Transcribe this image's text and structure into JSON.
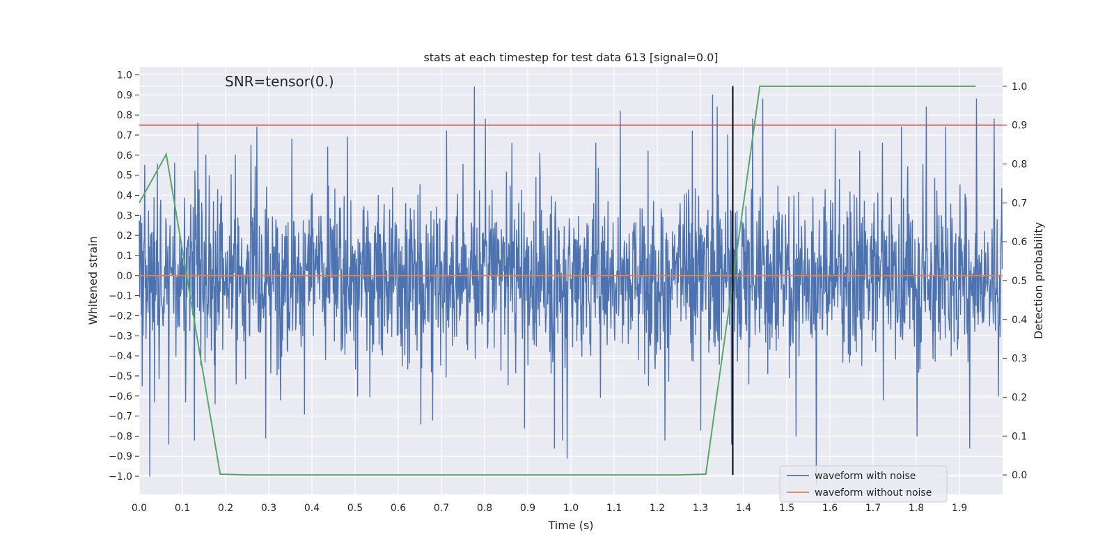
{
  "chart_data": {
    "type": "line",
    "title": "stats at each timestep for test data 613 [signal=0.0]",
    "xlabel": "Time (s)",
    "ylabel": "Whitened strain",
    "y2label": "Detection probability",
    "xlim": [
      0.0,
      2.0
    ],
    "ylim": [
      -1.09,
      1.04
    ],
    "y2lim": [
      -0.05,
      1.05
    ],
    "xticks": [
      0.0,
      0.1,
      0.2,
      0.3,
      0.4,
      0.5,
      0.6,
      0.7,
      0.8,
      0.9,
      1.0,
      1.1,
      1.2,
      1.3,
      1.4,
      1.5,
      1.6,
      1.7,
      1.8,
      1.9
    ],
    "yticks": [
      -1.0,
      -0.9,
      -0.8,
      -0.7,
      -0.6,
      -0.5,
      -0.4,
      -0.3,
      -0.2,
      -0.1,
      0.0,
      0.1,
      0.2,
      0.3,
      0.4,
      0.5,
      0.6,
      0.7,
      0.8,
      0.9,
      1.0
    ],
    "y2ticks": [
      0.0,
      0.1,
      0.2,
      0.3,
      0.4,
      0.5,
      0.6,
      0.7,
      0.8,
      0.9,
      1.0
    ],
    "annotation": "SNR=tensor(0.)",
    "grid": true,
    "legend_position": "lower-right",
    "noise_series": {
      "name": "waveform with noise",
      "color": "#4c72b0",
      "sample_rate": 1024,
      "duration": 2.0,
      "typical_range": [
        -0.5,
        0.5
      ],
      "spikes": [
        {
          "t": 0.007,
          "v": -0.55
        },
        {
          "t": 0.013,
          "v": 0.55
        },
        {
          "t": 0.024,
          "v": -1.0
        },
        {
          "t": 0.035,
          "v": -0.63
        },
        {
          "t": 0.068,
          "v": -0.84
        },
        {
          "t": 0.082,
          "v": 0.56
        },
        {
          "t": 0.107,
          "v": -0.63
        },
        {
          "t": 0.128,
          "v": -0.82
        },
        {
          "t": 0.136,
          "v": 0.76
        },
        {
          "t": 0.154,
          "v": 0.6
        },
        {
          "t": 0.176,
          "v": -0.64
        },
        {
          "t": 0.223,
          "v": 0.6
        },
        {
          "t": 0.259,
          "v": 0.65
        },
        {
          "t": 0.272,
          "v": 0.74
        },
        {
          "t": 0.293,
          "v": -0.81
        },
        {
          "t": 0.354,
          "v": 0.68
        },
        {
          "t": 0.383,
          "v": -0.69
        },
        {
          "t": 0.437,
          "v": 0.64
        },
        {
          "t": 0.482,
          "v": 0.69
        },
        {
          "t": 0.506,
          "v": -0.6
        },
        {
          "t": 0.652,
          "v": -0.74
        },
        {
          "t": 0.68,
          "v": -0.72
        },
        {
          "t": 0.712,
          "v": 0.72
        },
        {
          "t": 0.776,
          "v": 0.94
        },
        {
          "t": 0.802,
          "v": 0.78
        },
        {
          "t": 0.863,
          "v": 0.66
        },
        {
          "t": 0.893,
          "v": -0.76
        },
        {
          "t": 0.962,
          "v": -0.86
        },
        {
          "t": 0.98,
          "v": -0.82
        },
        {
          "t": 0.991,
          "v": -0.91
        },
        {
          "t": 1.058,
          "v": 0.66
        },
        {
          "t": 1.114,
          "v": 0.82
        },
        {
          "t": 1.179,
          "v": 0.62
        },
        {
          "t": 1.218,
          "v": -0.82
        },
        {
          "t": 1.281,
          "v": 0.72
        },
        {
          "t": 1.301,
          "v": -0.77
        },
        {
          "t": 1.328,
          "v": 0.9
        },
        {
          "t": 1.339,
          "v": 0.84
        },
        {
          "t": 1.363,
          "v": 0.7
        },
        {
          "t": 1.372,
          "v": -0.84
        },
        {
          "t": 1.421,
          "v": 0.78
        },
        {
          "t": 1.444,
          "v": 0.88
        },
        {
          "t": 1.521,
          "v": -0.8
        },
        {
          "t": 1.568,
          "v": -1.04
        },
        {
          "t": 1.612,
          "v": 0.73
        },
        {
          "t": 1.722,
          "v": 0.66
        },
        {
          "t": 1.766,
          "v": 0.74
        },
        {
          "t": 1.802,
          "v": -0.8
        },
        {
          "t": 1.823,
          "v": 0.84
        },
        {
          "t": 1.868,
          "v": 0.74
        },
        {
          "t": 1.924,
          "v": -0.86
        },
        {
          "t": 1.939,
          "v": 0.88
        },
        {
          "t": 1.98,
          "v": 0.78
        },
        {
          "t": 1.99,
          "v": -0.6
        }
      ]
    },
    "clean_series": {
      "name": "waveform without noise",
      "color": "#dd8452",
      "x": [
        0.0,
        2.0
      ],
      "y": [
        0.0,
        0.0
      ]
    },
    "probability_series": {
      "name": "detection probability",
      "color": "#55a868",
      "axis": "right",
      "x": [
        0.0,
        0.0625,
        0.1875,
        0.25,
        0.3125,
        1.25,
        1.3125,
        1.375,
        1.4375,
        1.5,
        1.9375
      ],
      "y": [
        0.7,
        0.825,
        0.002,
        0.0,
        0.0,
        0.0,
        0.002,
        0.5,
        1.0,
        1.0,
        1.0
      ]
    },
    "threshold_line": {
      "axis": "right",
      "value": 0.9,
      "color": "#c44e52"
    },
    "event_marker": {
      "x": 1.375,
      "y_from": 0.0,
      "y_to": 1.0,
      "axis": "right",
      "color": "#000000"
    }
  }
}
